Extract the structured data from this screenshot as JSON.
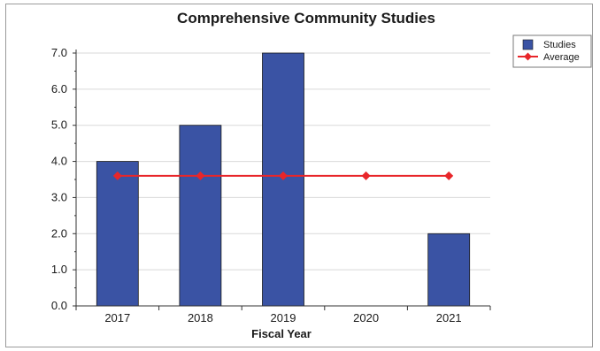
{
  "chart_data": {
    "type": "bar",
    "title": "Comprehensive Community Studies",
    "xlabel": "Fiscal Year",
    "ylabel": "",
    "categories": [
      "2017",
      "2018",
      "2019",
      "2020",
      "2021"
    ],
    "series": [
      {
        "name": "Studies",
        "type": "bar",
        "values": [
          4,
          5,
          7,
          0,
          2
        ],
        "color": "#3a53a4"
      },
      {
        "name": "Average",
        "type": "line",
        "values": [
          3.6,
          3.6,
          3.6,
          3.6,
          3.6
        ],
        "color": "#e8262a"
      }
    ],
    "ylim": [
      0,
      7
    ],
    "yticks": [
      "0.0",
      "1.0",
      "2.0",
      "3.0",
      "4.0",
      "5.0",
      "6.0",
      "7.0"
    ],
    "grid": true,
    "legend": "top-right"
  }
}
